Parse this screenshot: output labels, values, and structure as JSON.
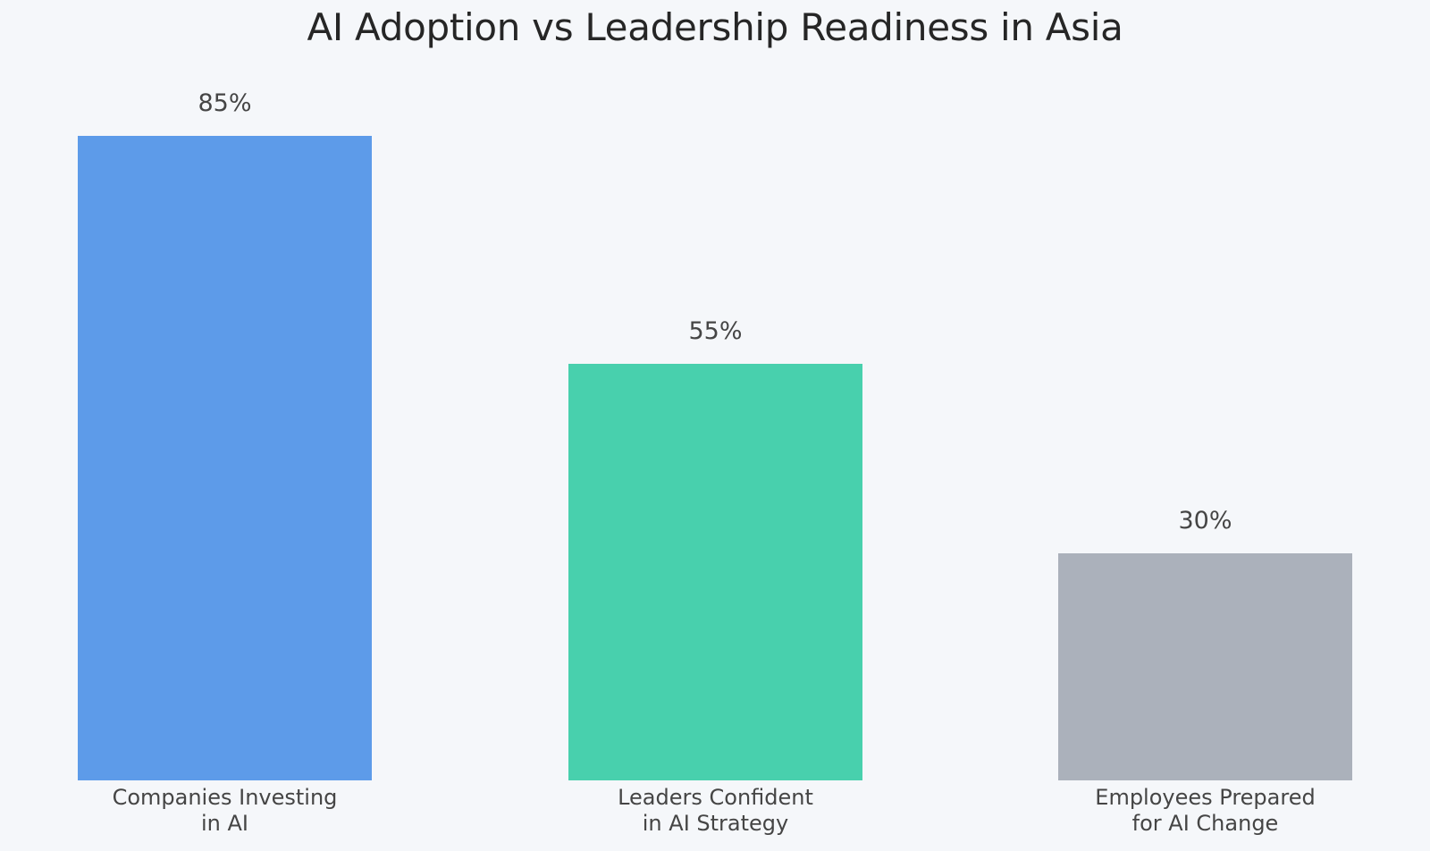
{
  "chart_data": {
    "type": "bar",
    "title": "AI Adoption vs Leadership Readiness in Asia",
    "categories": [
      "Companies Investing in AI",
      "Leaders Confident in AI Strategy",
      "Employees Prepared for AI Change"
    ],
    "category_label_lines": [
      [
        "Companies Investing",
        "in AI"
      ],
      [
        "Leaders Confident",
        "in AI Strategy"
      ],
      [
        "Employees Prepared",
        "for AI Change"
      ]
    ],
    "values": [
      85,
      55,
      30
    ],
    "value_labels": [
      "85%",
      "55%",
      "30%"
    ],
    "colors": [
      "#5d9be9",
      "#48d0ad",
      "#abb1bb"
    ],
    "xlabel": "",
    "ylabel": "",
    "ylim": [
      0,
      100
    ],
    "grid": false,
    "legend": "none",
    "y_axis_visible": false
  },
  "background_color": "#f5f7fa"
}
